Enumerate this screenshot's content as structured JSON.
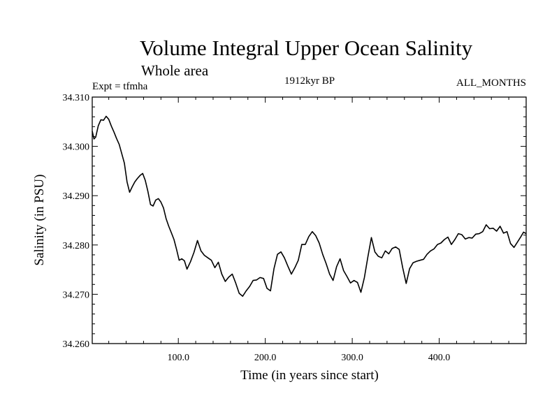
{
  "chart_data": {
    "type": "line",
    "title": "Volume Integral Upper Ocean Salinity",
    "subtitle": "Whole area",
    "experiment_label": "Expt = tfmha",
    "period_label": "1912kyr BP",
    "months_label": "ALL_MONTHS",
    "xlabel": "Time (in years since start)",
    "ylabel": "Salinity (in PSU)",
    "xlim": [
      1,
      500
    ],
    "ylim": [
      34.26,
      34.31
    ],
    "x_ticks": [
      100,
      200,
      300,
      400
    ],
    "x_tick_labels": [
      "100.0",
      "200.0",
      "300.0",
      "400.0"
    ],
    "y_ticks": [
      34.26,
      34.27,
      34.28,
      34.29,
      34.3,
      34.31
    ],
    "y_tick_labels": [
      "34.260",
      "34.270",
      "34.280",
      "34.290",
      "34.300",
      "34.310"
    ],
    "series": [
      {
        "name": "Salinity",
        "x": [
          1,
          3,
          5,
          8,
          11,
          14,
          17,
          20,
          23,
          26,
          29,
          32,
          35,
          38,
          41,
          44,
          47,
          50,
          53,
          56,
          59,
          62,
          65,
          68,
          71,
          74,
          77,
          80,
          83,
          86,
          89,
          92,
          95,
          98,
          101,
          104,
          107,
          110,
          114,
          118,
          122,
          126,
          130,
          134,
          138,
          142,
          146,
          150,
          154,
          158,
          162,
          166,
          170,
          174,
          178,
          182,
          186,
          190,
          194,
          198,
          202,
          206,
          210,
          214,
          218,
          222,
          226,
          230,
          234,
          238,
          242,
          246,
          250,
          254,
          258,
          262,
          266,
          270,
          274,
          278,
          282,
          286,
          290,
          294,
          298,
          302,
          306,
          310,
          314,
          318,
          322,
          326,
          330,
          334,
          338,
          342,
          346,
          350,
          354,
          358,
          362,
          366,
          370,
          374,
          378,
          382,
          386,
          390,
          394,
          398,
          402,
          406,
          410,
          414,
          418,
          422,
          426,
          430,
          434,
          438,
          442,
          446,
          450,
          454,
          458,
          462,
          466,
          470,
          474,
          478,
          482,
          486,
          490,
          494,
          497,
          500
        ],
        "values": [
          34.3031,
          34.3015,
          34.3019,
          34.3042,
          34.3054,
          34.3053,
          34.3061,
          34.3055,
          34.3041,
          34.3029,
          34.3016,
          34.3004,
          34.2985,
          34.2966,
          34.2928,
          34.2907,
          34.2918,
          34.2928,
          34.2935,
          34.2941,
          34.2945,
          34.2931,
          34.2909,
          34.2882,
          34.2879,
          34.2891,
          34.2894,
          34.2887,
          34.2875,
          34.2853,
          34.2838,
          34.2825,
          34.2811,
          34.2791,
          34.2769,
          34.2772,
          34.2768,
          34.2751,
          34.2766,
          34.2785,
          34.2809,
          34.2788,
          34.2779,
          34.2774,
          34.2769,
          34.2754,
          34.2765,
          34.2741,
          34.2726,
          34.2735,
          34.2741,
          34.2723,
          34.2702,
          34.2696,
          34.2707,
          34.2716,
          34.2728,
          34.2729,
          34.2734,
          34.2732,
          34.2712,
          34.2707,
          34.2752,
          34.2781,
          34.2786,
          34.2774,
          34.2757,
          34.2741,
          34.2754,
          34.2769,
          34.2801,
          34.2801,
          34.2817,
          34.2827,
          34.2819,
          34.2804,
          34.2781,
          34.2762,
          34.2741,
          34.2728,
          34.2756,
          34.2772,
          34.2748,
          34.2736,
          34.2723,
          34.2728,
          34.2724,
          34.2704,
          34.2734,
          34.2776,
          34.2815,
          34.2786,
          34.2777,
          34.2774,
          34.2788,
          34.2782,
          34.2793,
          34.2796,
          34.2791,
          34.2754,
          34.2722,
          34.2752,
          34.2764,
          34.2767,
          34.2769,
          34.2771,
          34.2781,
          34.2788,
          34.2792,
          34.2801,
          34.2804,
          34.2811,
          34.2816,
          34.2801,
          34.2811,
          34.2823,
          34.2821,
          34.2812,
          34.2815,
          34.2814,
          34.2822,
          34.2823,
          34.2827,
          34.2841,
          34.2833,
          34.2834,
          34.2828,
          34.2838,
          34.2824,
          34.2827,
          34.2803,
          34.2795,
          34.2806,
          34.2817,
          34.2826,
          34.2823
        ]
      }
    ]
  }
}
